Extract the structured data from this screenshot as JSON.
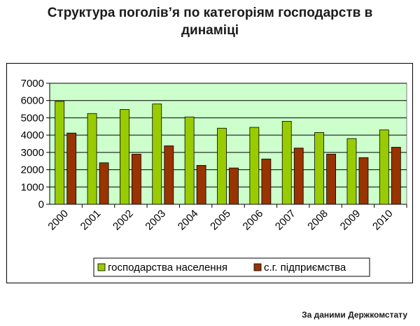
{
  "page": {
    "title_line1": "Структура поголів’я по категоріям господарств в",
    "title_line2": "динаміці",
    "source": "За даними Держкомстату"
  },
  "colors": {
    "series1": "#99cc00",
    "series2": "#993300",
    "plot_bg": "#ccffcc",
    "grid": "#000000"
  },
  "chart_data": {
    "type": "bar",
    "title": "Структура поголів’я по категоріям господарств в динаміці",
    "xlabel": "",
    "ylabel": "",
    "ylim": [
      0,
      7000
    ],
    "yticks": [
      0,
      1000,
      2000,
      3000,
      4000,
      5000,
      6000,
      7000
    ],
    "grid": true,
    "legend": "bottom",
    "categories": [
      "2000",
      "2001",
      "2002",
      "2003",
      "2004",
      "2005",
      "2006",
      "2007",
      "2008",
      "2009",
      "2010"
    ],
    "series": [
      {
        "name": "господарства населення",
        "values": [
          5950,
          5250,
          5480,
          5800,
          5050,
          4400,
          4450,
          4800,
          4150,
          3800,
          4300
        ]
      },
      {
        "name": "с.г. підприємства",
        "values": [
          4120,
          2400,
          2900,
          3380,
          2250,
          2100,
          2620,
          3250,
          2900,
          2700,
          3300
        ]
      }
    ]
  }
}
